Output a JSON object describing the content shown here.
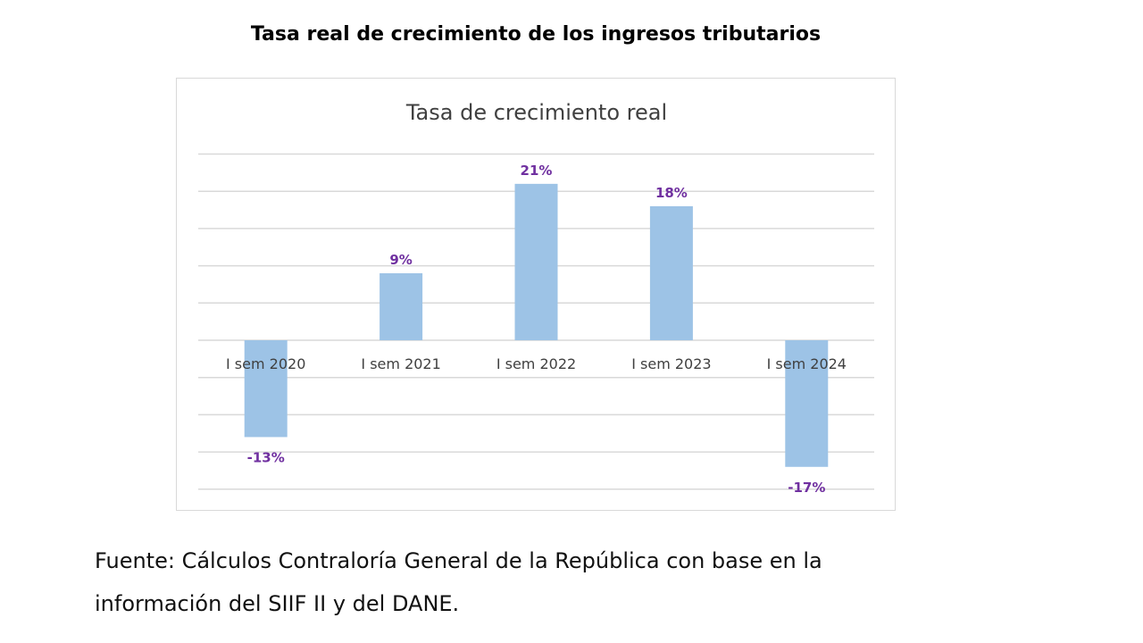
{
  "page": {
    "title": "Tasa real de crecimiento de los ingresos tributarios",
    "source_line1": "Fuente: Cálculos Contraloría General de la República con base en la",
    "source_line2": "información del SIIF II y del DANE."
  },
  "chart_data": {
    "type": "bar",
    "title": "Tasa de crecimiento real",
    "categories": [
      "I sem 2020",
      "I sem 2021",
      "I sem 2022",
      "I sem 2023",
      "I sem 2024"
    ],
    "values": [
      -13,
      9,
      21,
      18,
      -17
    ],
    "data_labels": [
      "-13%",
      "9%",
      "21%",
      "18%",
      "-17%"
    ],
    "unit": "%",
    "ylim": [
      -20,
      25
    ],
    "grid_step": 5,
    "grid": true,
    "y_tick_labels_shown": false,
    "legend": "none",
    "bar_color": "#9dc3e6",
    "label_color": "#7030a0"
  }
}
